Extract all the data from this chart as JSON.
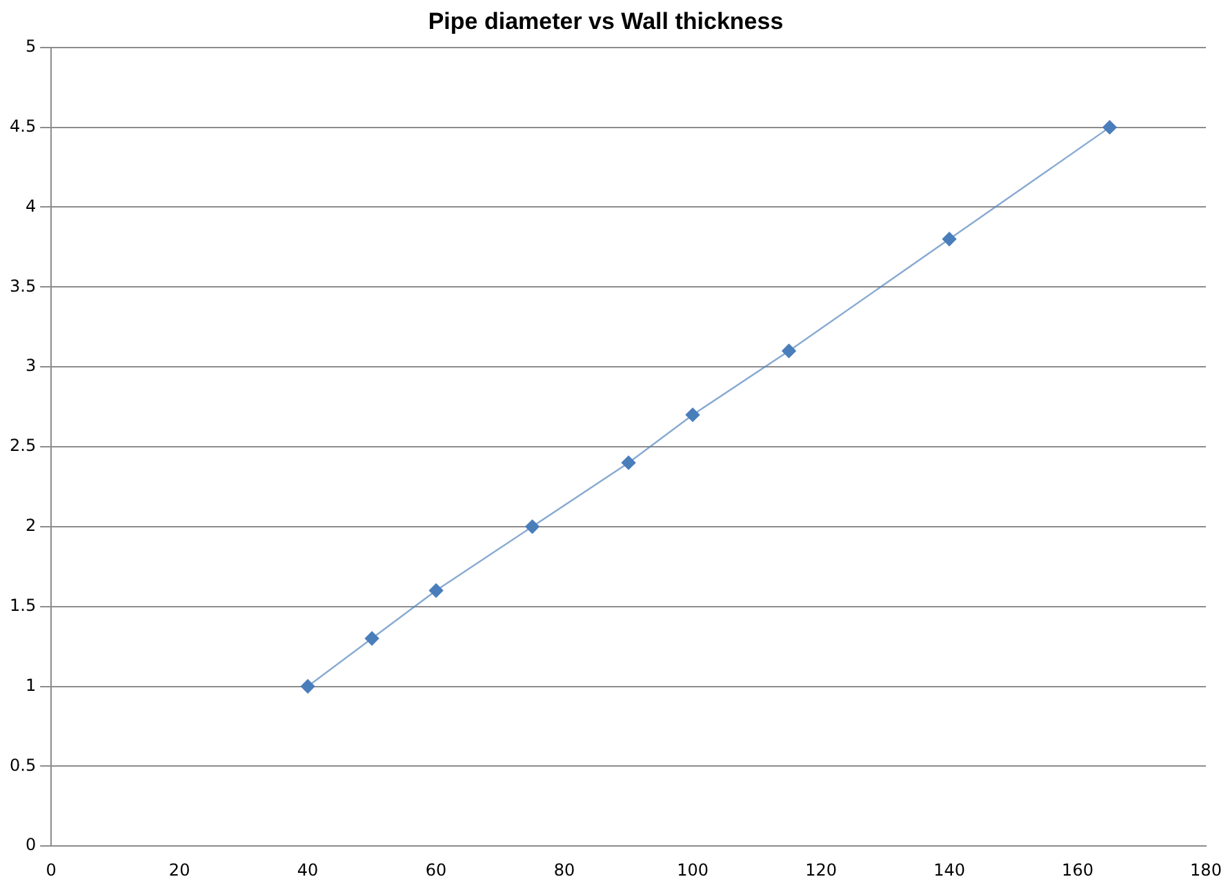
{
  "chart_data": {
    "type": "line",
    "title": "Pipe diameter vs Wall thickness",
    "x": [
      40,
      50,
      60,
      75,
      90,
      100,
      115,
      140,
      165
    ],
    "series": [
      {
        "color": "#4a7ebb",
        "values": [
          1,
          1.3,
          1.6,
          2,
          2.4,
          2.7,
          3.1,
          3.8,
          4.5
        ]
      }
    ],
    "xlim": [
      0,
      180
    ],
    "xticks": [
      0,
      20,
      40,
      60,
      80,
      100,
      120,
      140,
      160,
      180
    ],
    "ylim": [
      0,
      5
    ],
    "yticks": [
      0,
      0.5,
      1,
      1.5,
      2,
      2.5,
      3,
      3.5,
      4,
      4.5,
      5
    ],
    "grid": "y",
    "legend": false,
    "marker": "diamond",
    "line_style": "solid"
  }
}
